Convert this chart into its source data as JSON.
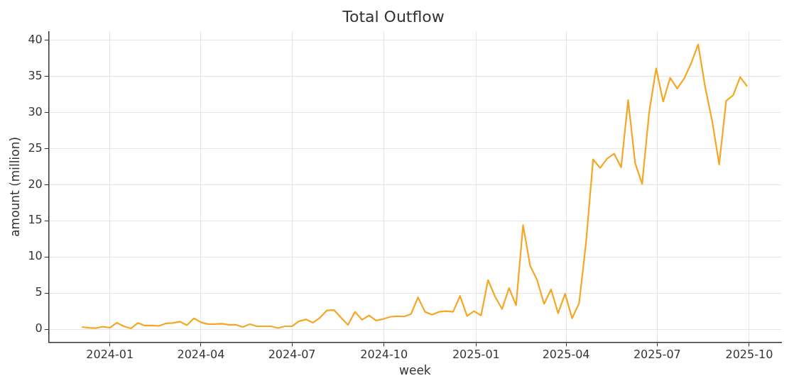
{
  "chart_data": {
    "type": "line",
    "title": "Total Outflow",
    "xlabel": "week",
    "ylabel": "amount (million)",
    "x": [
      "2023-12-04",
      "2023-12-11",
      "2023-12-18",
      "2023-12-25",
      "2024-01-01",
      "2024-01-08",
      "2024-01-15",
      "2024-01-22",
      "2024-01-29",
      "2024-02-05",
      "2024-02-12",
      "2024-02-19",
      "2024-02-26",
      "2024-03-04",
      "2024-03-11",
      "2024-03-18",
      "2024-03-25",
      "2024-04-01",
      "2024-04-08",
      "2024-04-15",
      "2024-04-22",
      "2024-04-29",
      "2024-05-06",
      "2024-05-13",
      "2024-05-20",
      "2024-05-27",
      "2024-06-03",
      "2024-06-10",
      "2024-06-17",
      "2024-06-24",
      "2024-07-01",
      "2024-07-08",
      "2024-07-15",
      "2024-07-22",
      "2024-07-29",
      "2024-08-05",
      "2024-08-12",
      "2024-08-19",
      "2024-08-26",
      "2024-09-02",
      "2024-09-09",
      "2024-09-16",
      "2024-09-23",
      "2024-09-30",
      "2024-10-07",
      "2024-10-14",
      "2024-10-21",
      "2024-10-28",
      "2024-11-04",
      "2024-11-11",
      "2024-11-18",
      "2024-11-25",
      "2024-12-02",
      "2024-12-09",
      "2024-12-16",
      "2024-12-23",
      "2024-12-30",
      "2025-01-06",
      "2025-01-13",
      "2025-01-20",
      "2025-01-27",
      "2025-02-03",
      "2025-02-10",
      "2025-02-17",
      "2025-02-24",
      "2025-03-03",
      "2025-03-10",
      "2025-03-17",
      "2025-03-24",
      "2025-03-31",
      "2025-04-07",
      "2025-04-14",
      "2025-04-21",
      "2025-04-28",
      "2025-05-05",
      "2025-05-12",
      "2025-05-19",
      "2025-05-26",
      "2025-06-02",
      "2025-06-09",
      "2025-06-16",
      "2025-06-23",
      "2025-06-30",
      "2025-07-07",
      "2025-07-14",
      "2025-07-21",
      "2025-07-28",
      "2025-08-04",
      "2025-08-11",
      "2025-08-18",
      "2025-08-25",
      "2025-09-01",
      "2025-09-08",
      "2025-09-15",
      "2025-09-22",
      "2025-09-29"
    ],
    "series": [
      {
        "color": "#f5a623",
        "values": [
          0.3,
          0.2,
          0.15,
          0.35,
          0.2,
          0.9,
          0.4,
          0.1,
          0.85,
          0.5,
          0.5,
          0.45,
          0.8,
          0.85,
          1.05,
          0.55,
          1.5,
          0.95,
          0.7,
          0.7,
          0.75,
          0.6,
          0.6,
          0.3,
          0.7,
          0.4,
          0.4,
          0.4,
          0.15,
          0.4,
          0.4,
          1.1,
          1.35,
          0.9,
          1.6,
          2.6,
          2.65,
          1.6,
          0.6,
          2.4,
          1.3,
          1.9,
          1.2,
          1.4,
          1.7,
          1.8,
          1.75,
          2.1,
          4.4,
          2.4,
          2.0,
          2.4,
          2.5,
          2.4,
          4.6,
          1.8,
          2.5,
          1.9,
          6.8,
          4.5,
          2.8,
          5.7,
          3.3,
          14.4,
          8.8,
          6.8,
          3.5,
          5.5,
          2.2,
          4.9,
          1.5,
          3.6,
          12.1,
          23.5,
          22.3,
          23.6,
          24.3,
          22.4,
          31.7,
          23.0,
          20.1,
          30.0,
          36.1,
          31.5,
          34.8,
          33.3,
          34.7,
          36.8,
          39.4,
          33.5,
          28.8,
          22.8,
          31.6,
          32.4,
          34.9,
          33.6
        ]
      }
    ],
    "xlim": [
      "2023-11-01",
      "2025-11-02"
    ],
    "xticks": [
      {
        "value": "2024-01-01",
        "label": "2024-01"
      },
      {
        "value": "2024-04-01",
        "label": "2024-04"
      },
      {
        "value": "2024-07-01",
        "label": "2024-07"
      },
      {
        "value": "2024-10-01",
        "label": "2024-10"
      },
      {
        "value": "2025-01-01",
        "label": "2025-01"
      },
      {
        "value": "2025-04-01",
        "label": "2025-04"
      },
      {
        "value": "2025-07-01",
        "label": "2025-07"
      },
      {
        "value": "2025-10-01",
        "label": "2025-10"
      }
    ],
    "ylim": [
      -1.8,
      41.2
    ],
    "yticks": [
      0,
      5,
      10,
      15,
      20,
      25,
      30,
      35,
      40
    ],
    "grid": true,
    "line_style": "solid",
    "marker": "none"
  }
}
